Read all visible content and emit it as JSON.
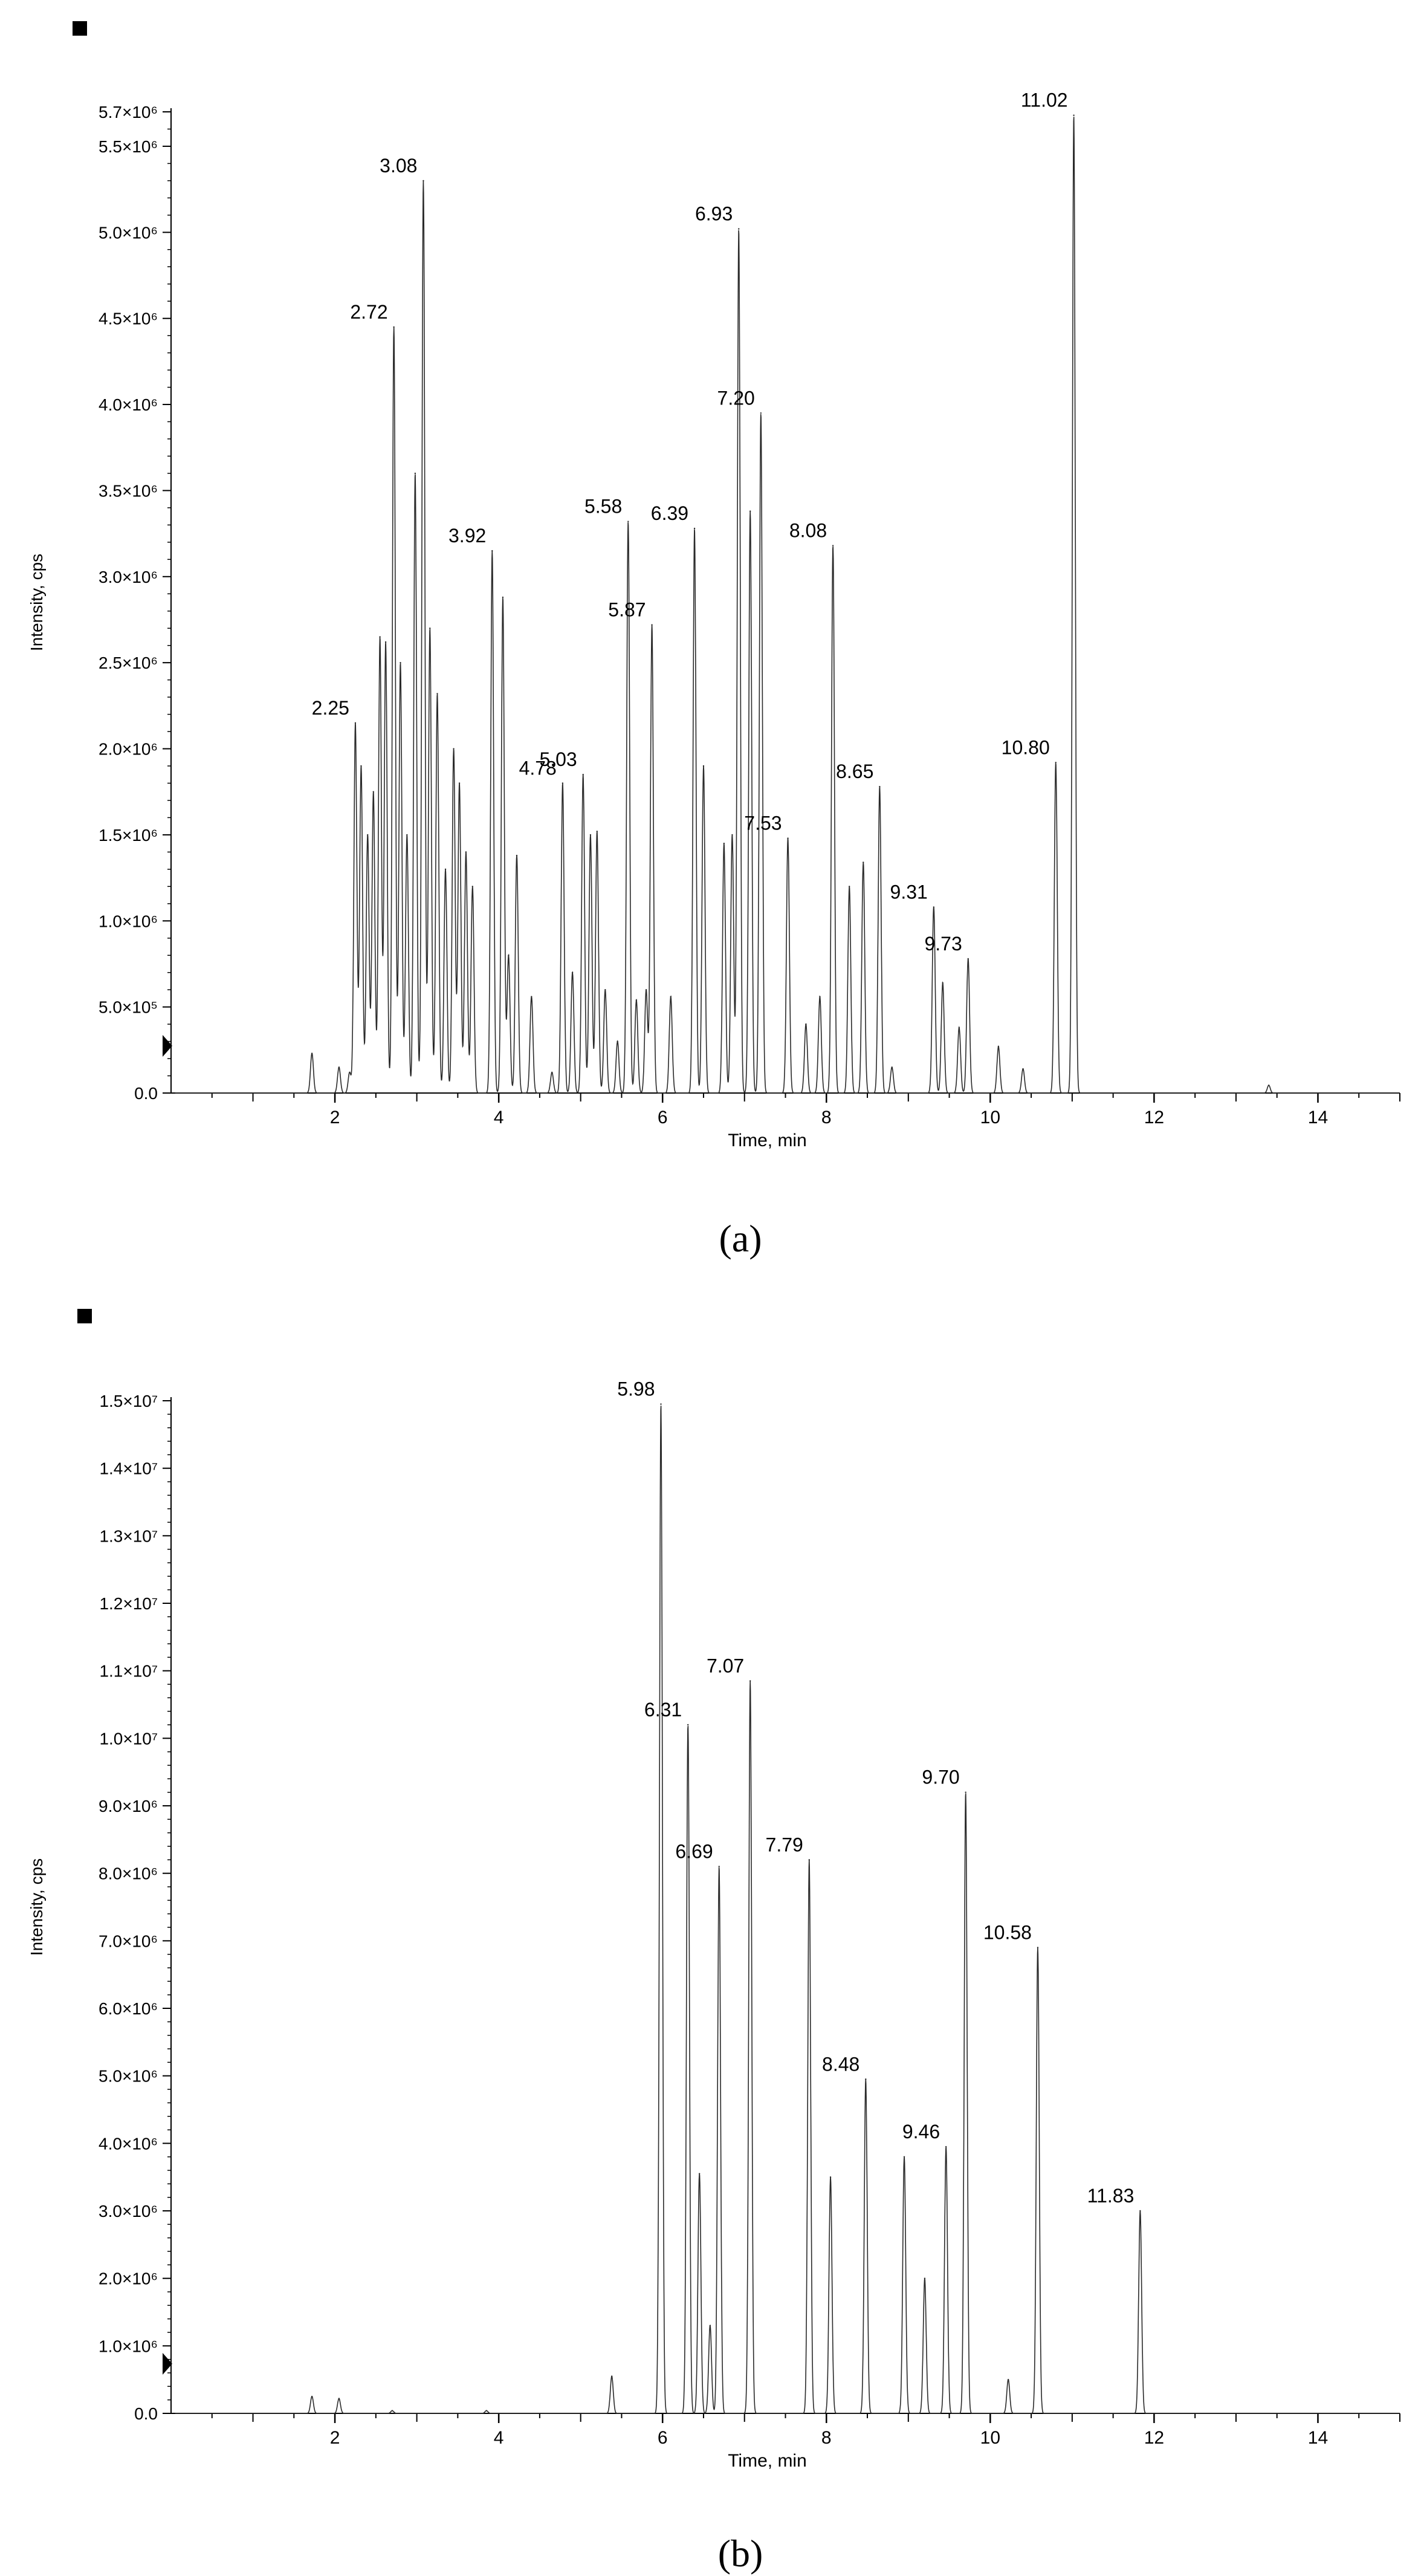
{
  "panels": [
    {
      "caption": "(a)",
      "caption_letter": "a",
      "chart_data": {
        "type": "line",
        "title": "",
        "xlabel": "Time, min",
        "ylabel": "Intensity, cps",
        "xlim": [
          0,
          15
        ],
        "ylim": [
          0,
          5700000
        ],
        "x_ticks": [
          2,
          4,
          6,
          8,
          10,
          12,
          14
        ],
        "y_ticks": [
          {
            "value": 0,
            "label": "0.0"
          },
          {
            "value": 500000,
            "label": "5.0×10⁵"
          },
          {
            "value": 1000000,
            "label": "1.0×10⁶"
          },
          {
            "value": 1500000,
            "label": "1.5×10⁶"
          },
          {
            "value": 2000000,
            "label": "2.0×10⁶"
          },
          {
            "value": 2500000,
            "label": "2.5×10⁶"
          },
          {
            "value": 3000000,
            "label": "3.0×10⁶"
          },
          {
            "value": 3500000,
            "label": "3.5×10⁶"
          },
          {
            "value": 4000000,
            "label": "4.0×10⁶"
          },
          {
            "value": 4500000,
            "label": "4.5×10⁶"
          },
          {
            "value": 5000000,
            "label": "5.0×10⁶"
          },
          {
            "value": 5500000,
            "label": "5.5×10⁶"
          },
          {
            "value": 5700000,
            "label": "5.7×10⁶"
          }
        ],
        "grid": false,
        "peaks": [
          {
            "t": 1.72,
            "y": 230000
          },
          {
            "t": 2.05,
            "y": 150000
          },
          {
            "t": 2.18,
            "y": 120000
          },
          {
            "t": 2.25,
            "y": 2150000,
            "label": "2.25"
          },
          {
            "t": 2.32,
            "y": 1900000
          },
          {
            "t": 2.4,
            "y": 1500000
          },
          {
            "t": 2.47,
            "y": 1750000
          },
          {
            "t": 2.55,
            "y": 2650000
          },
          {
            "t": 2.62,
            "y": 2620000
          },
          {
            "t": 2.72,
            "y": 4450000,
            "label": "2.72"
          },
          {
            "t": 2.8,
            "y": 2500000
          },
          {
            "t": 2.88,
            "y": 1500000
          },
          {
            "t": 2.98,
            "y": 3600000
          },
          {
            "t": 3.08,
            "y": 5300000,
            "label": "3.08"
          },
          {
            "t": 3.16,
            "y": 2700000
          },
          {
            "t": 3.25,
            "y": 2320000
          },
          {
            "t": 3.35,
            "y": 1300000
          },
          {
            "t": 3.45,
            "y": 2000000
          },
          {
            "t": 3.52,
            "y": 1800000
          },
          {
            "t": 3.6,
            "y": 1400000
          },
          {
            "t": 3.68,
            "y": 1200000
          },
          {
            "t": 3.92,
            "y": 3150000,
            "label": "3.92"
          },
          {
            "t": 4.05,
            "y": 2880000
          },
          {
            "t": 4.12,
            "y": 800000
          },
          {
            "t": 4.22,
            "y": 1380000
          },
          {
            "t": 4.4,
            "y": 560000
          },
          {
            "t": 4.65,
            "y": 120000
          },
          {
            "t": 4.78,
            "y": 1800000,
            "label": "4.78"
          },
          {
            "t": 4.9,
            "y": 700000
          },
          {
            "t": 5.03,
            "y": 1850000,
            "label": "5.03"
          },
          {
            "t": 5.12,
            "y": 1500000
          },
          {
            "t": 5.2,
            "y": 1520000
          },
          {
            "t": 5.3,
            "y": 600000
          },
          {
            "t": 5.45,
            "y": 300000
          },
          {
            "t": 5.58,
            "y": 3320000,
            "label": "5.58"
          },
          {
            "t": 5.68,
            "y": 540000
          },
          {
            "t": 5.8,
            "y": 600000
          },
          {
            "t": 5.87,
            "y": 2720000,
            "label": "5.87"
          },
          {
            "t": 6.1,
            "y": 560000
          },
          {
            "t": 6.39,
            "y": 3280000,
            "label": "6.39"
          },
          {
            "t": 6.5,
            "y": 1900000
          },
          {
            "t": 6.75,
            "y": 1450000
          },
          {
            "t": 6.85,
            "y": 1500000
          },
          {
            "t": 6.93,
            "y": 5020000,
            "label": "6.93"
          },
          {
            "t": 7.07,
            "y": 3380000
          },
          {
            "t": 7.2,
            "y": 3950000,
            "label": "7.20"
          },
          {
            "t": 7.53,
            "y": 1480000,
            "label": "7.53"
          },
          {
            "t": 7.75,
            "y": 400000
          },
          {
            "t": 7.92,
            "y": 560000
          },
          {
            "t": 8.08,
            "y": 3180000,
            "label": "8.08"
          },
          {
            "t": 8.28,
            "y": 1200000
          },
          {
            "t": 8.45,
            "y": 1340000
          },
          {
            "t": 8.65,
            "y": 1780000,
            "label": "8.65"
          },
          {
            "t": 8.8,
            "y": 150000
          },
          {
            "t": 9.31,
            "y": 1080000,
            "label": "9.31"
          },
          {
            "t": 9.42,
            "y": 640000
          },
          {
            "t": 9.62,
            "y": 380000
          },
          {
            "t": 9.73,
            "y": 780000,
            "label": "9.73"
          },
          {
            "t": 10.1,
            "y": 270000
          },
          {
            "t": 10.4,
            "y": 140000
          },
          {
            "t": 10.8,
            "y": 1920000,
            "label": "10.80"
          },
          {
            "t": 11.02,
            "y": 5680000,
            "label": "11.02"
          },
          {
            "t": 13.4,
            "y": 45000
          }
        ]
      }
    },
    {
      "caption": "(b)",
      "caption_letter": "b",
      "chart_data": {
        "type": "line",
        "title": "",
        "xlabel": "Time, min",
        "ylabel": "Intensity, cps",
        "xlim": [
          0,
          15
        ],
        "ylim": [
          0,
          15000000
        ],
        "x_ticks": [
          2,
          4,
          6,
          8,
          10,
          12,
          14
        ],
        "y_ticks": [
          {
            "value": 0,
            "label": "0.0"
          },
          {
            "value": 1000000,
            "label": "1.0×10⁶"
          },
          {
            "value": 2000000,
            "label": "2.0×10⁶"
          },
          {
            "value": 3000000,
            "label": "3.0×10⁶"
          },
          {
            "value": 4000000,
            "label": "4.0×10⁶"
          },
          {
            "value": 5000000,
            "label": "5.0×10⁶"
          },
          {
            "value": 6000000,
            "label": "6.0×10⁶"
          },
          {
            "value": 7000000,
            "label": "7.0×10⁶"
          },
          {
            "value": 8000000,
            "label": "8.0×10⁶"
          },
          {
            "value": 9000000,
            "label": "9.0×10⁶"
          },
          {
            "value": 10000000,
            "label": "1.0×10⁷"
          },
          {
            "value": 11000000,
            "label": "1.1×10⁷"
          },
          {
            "value": 12000000,
            "label": "1.2×10⁷"
          },
          {
            "value": 13000000,
            "label": "1.3×10⁷"
          },
          {
            "value": 14000000,
            "label": "1.4×10⁷"
          },
          {
            "value": 15000000,
            "label": "1.5×10⁷"
          }
        ],
        "grid": false,
        "peaks": [
          {
            "t": 1.72,
            "y": 250000
          },
          {
            "t": 2.05,
            "y": 220000
          },
          {
            "t": 2.7,
            "y": 40000
          },
          {
            "t": 3.85,
            "y": 40000
          },
          {
            "t": 5.38,
            "y": 550000
          },
          {
            "t": 5.98,
            "y": 14950000,
            "label": "5.98"
          },
          {
            "t": 6.31,
            "y": 10200000,
            "label": "6.31"
          },
          {
            "t": 6.45,
            "y": 3550000
          },
          {
            "t": 6.58,
            "y": 1300000
          },
          {
            "t": 6.69,
            "y": 8100000,
            "label": "6.69"
          },
          {
            "t": 7.07,
            "y": 10850000,
            "label": "7.07"
          },
          {
            "t": 7.79,
            "y": 8200000,
            "label": "7.79"
          },
          {
            "t": 8.05,
            "y": 3500000
          },
          {
            "t": 8.48,
            "y": 4950000,
            "label": "8.48"
          },
          {
            "t": 8.95,
            "y": 3800000
          },
          {
            "t": 9.2,
            "y": 2000000
          },
          {
            "t": 9.46,
            "y": 3950000,
            "label": "9.46"
          },
          {
            "t": 9.7,
            "y": 9200000,
            "label": "9.70"
          },
          {
            "t": 10.22,
            "y": 500000
          },
          {
            "t": 10.58,
            "y": 6900000,
            "label": "10.58"
          },
          {
            "t": 11.83,
            "y": 3000000,
            "label": "11.83"
          }
        ]
      }
    }
  ]
}
